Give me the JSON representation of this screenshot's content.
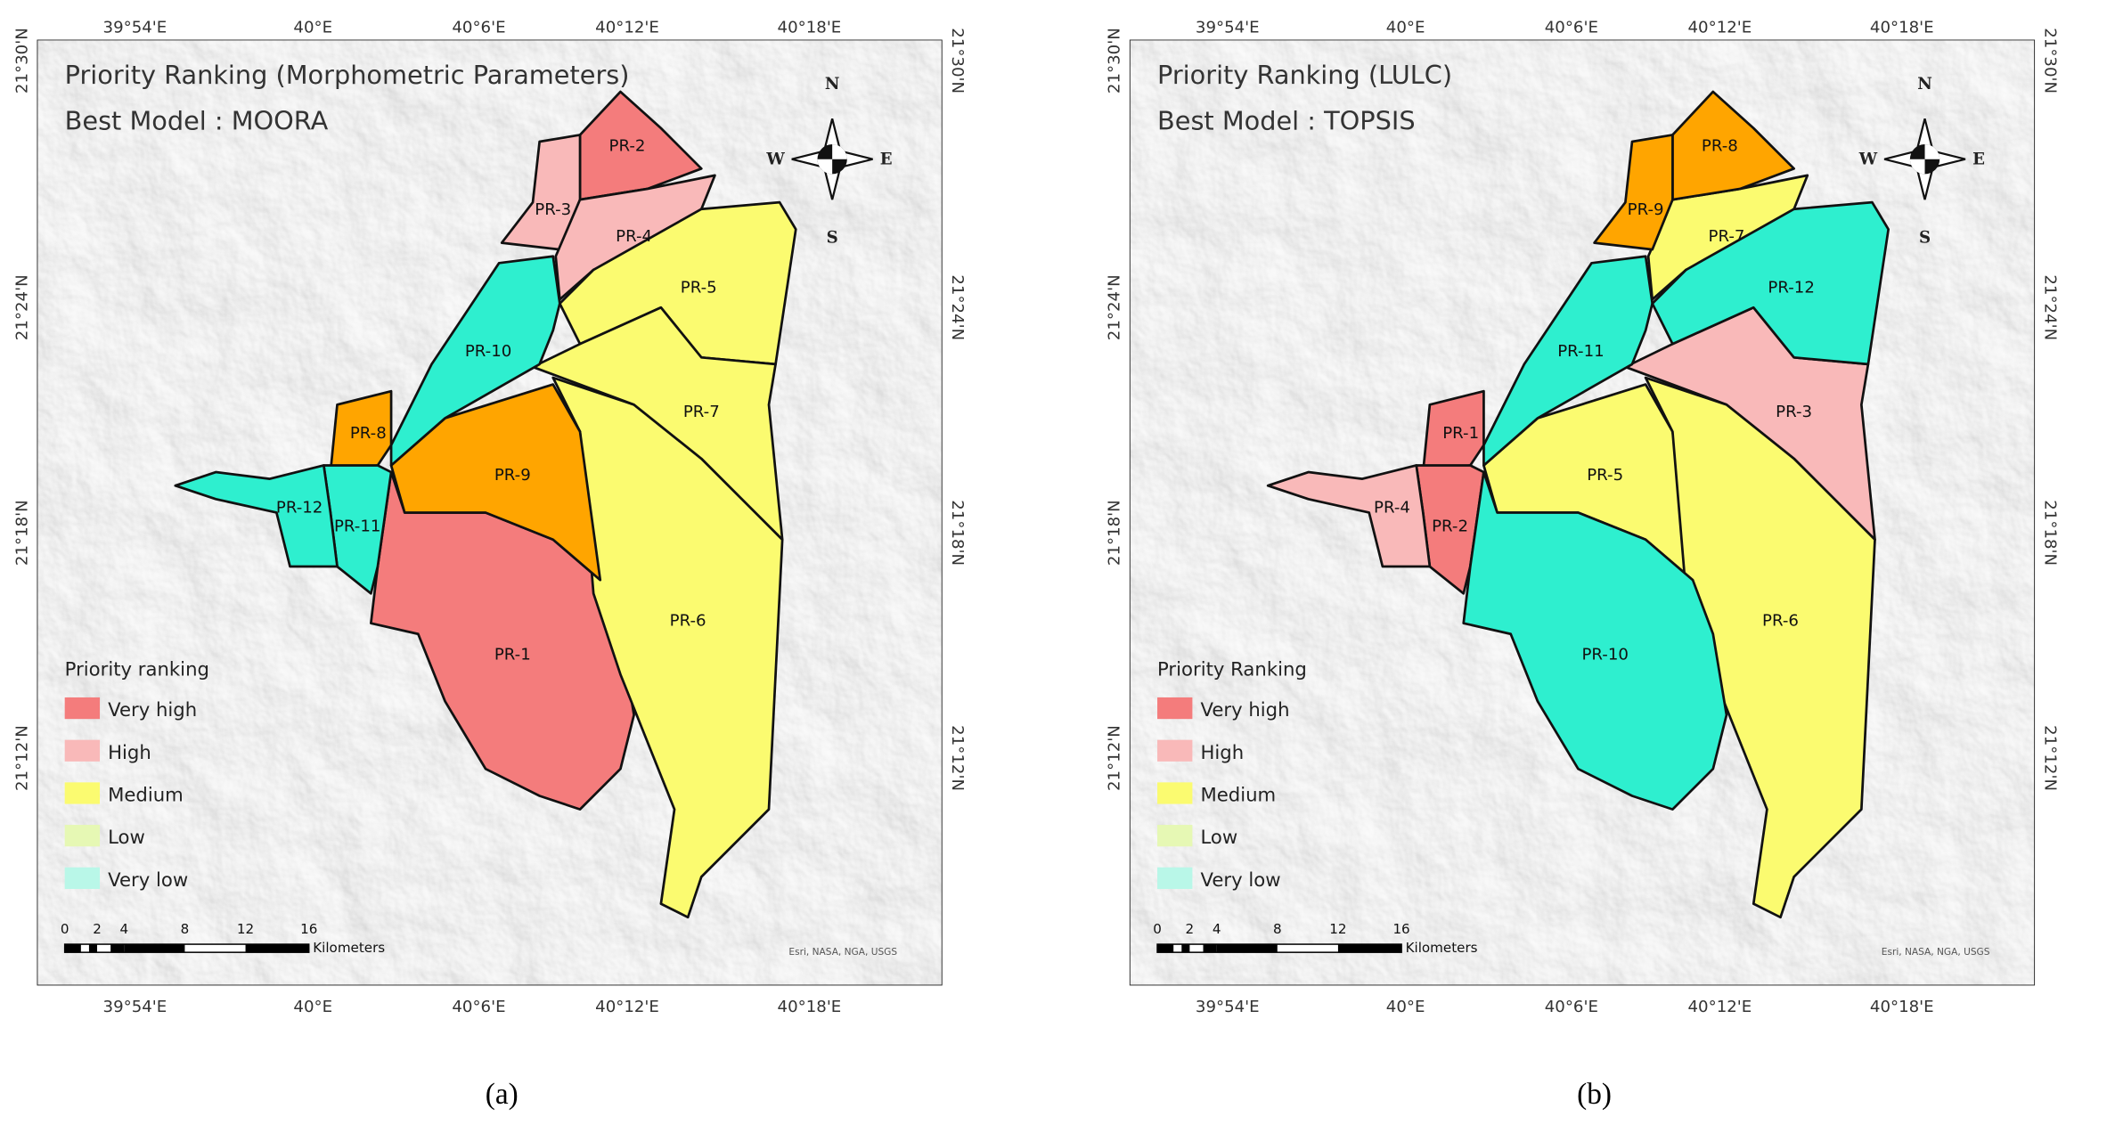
{
  "panels": [
    {
      "title": "Priority Ranking (Morphometric Parameters)",
      "subtitle": "Best Model : MOORA",
      "legend_title": "Priority ranking",
      "legend": [
        {
          "label": "Very high",
          "color": "#f47c7c"
        },
        {
          "label": "High",
          "color": "#f9b9b9"
        },
        {
          "label": "Medium",
          "color": "#fbfb70"
        },
        {
          "label": "Low",
          "color": "#e6f8b4"
        },
        {
          "label": "Very low",
          "color": "#b9f7e8"
        }
      ],
      "regions": [
        {
          "label": "PR-1",
          "color": "#f47c7c"
        },
        {
          "label": "PR-2",
          "color": "#f47c7c"
        },
        {
          "label": "PR-3",
          "color": "#f9b9b9"
        },
        {
          "label": "PR-4",
          "color": "#f9b9b9"
        },
        {
          "label": "PR-5",
          "color": "#fbfb70"
        },
        {
          "label": "PR-6",
          "color": "#fbfb70"
        },
        {
          "label": "PR-7",
          "color": "#fbfb70"
        },
        {
          "label": "PR-8",
          "color": "#ffa500"
        },
        {
          "label": "PR-9",
          "color": "#ffa500"
        },
        {
          "label": "PR-10",
          "color": "#2eefcf"
        },
        {
          "label": "PR-11",
          "color": "#2eefcf"
        },
        {
          "label": "PR-12",
          "color": "#2eefcf"
        }
      ],
      "caption": "(a)"
    },
    {
      "title": "Priority Ranking (LULC)",
      "subtitle": "Best Model : TOPSIS",
      "legend_title": "Priority Ranking",
      "legend": [
        {
          "label": "Very high",
          "color": "#f47c7c"
        },
        {
          "label": "High",
          "color": "#f9b9b9"
        },
        {
          "label": "Medium",
          "color": "#fbfb70"
        },
        {
          "label": "Low",
          "color": "#e6f8b4"
        },
        {
          "label": "Very low",
          "color": "#b9f7e8"
        }
      ],
      "regions": [
        {
          "label": "PR-1",
          "color": "#f47c7c"
        },
        {
          "label": "PR-2",
          "color": "#f47c7c"
        },
        {
          "label": "PR-3",
          "color": "#f9b9b9"
        },
        {
          "label": "PR-4",
          "color": "#f9b9b9"
        },
        {
          "label": "PR-5",
          "color": "#fbfb70"
        },
        {
          "label": "PR-6",
          "color": "#fbfb70"
        },
        {
          "label": "PR-7",
          "color": "#fbfb70"
        },
        {
          "label": "PR-8",
          "color": "#ffa500"
        },
        {
          "label": "PR-9",
          "color": "#ffa500"
        },
        {
          "label": "PR-10",
          "color": "#2eefcf"
        },
        {
          "label": "PR-11",
          "color": "#2eefcf"
        },
        {
          "label": "PR-12",
          "color": "#2eefcf"
        }
      ],
      "caption": "(b)"
    }
  ],
  "graticule": {
    "lon": [
      "39°54'E",
      "40°E",
      "40°6'E",
      "40°12'E",
      "40°18'E"
    ],
    "lat": [
      "21°30'N",
      "21°24'N",
      "21°18'N",
      "21°12'N"
    ]
  },
  "scale": {
    "ticks": [
      "0",
      "2",
      "4",
      "8",
      "12",
      "16"
    ],
    "unit": "Kilometers"
  },
  "compass": {
    "n": "N",
    "e": "E",
    "s": "S",
    "w": "W"
  },
  "attribution": "Esri, NASA, NGA, USGS"
}
